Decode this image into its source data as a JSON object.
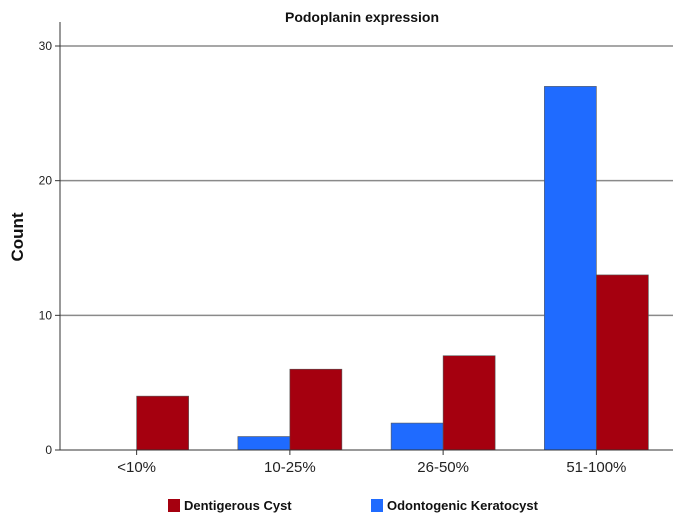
{
  "chart_data": {
    "type": "bar",
    "title": "Podoplanin expression",
    "xlabel": "",
    "ylabel": "Count",
    "categories": [
      "<10%",
      "10-25%",
      "26-50%",
      "51-100%"
    ],
    "series": [
      {
        "name": "Odontogenic Keratocyst",
        "color": "#1f6bff",
        "values": [
          0,
          1,
          2,
          27
        ]
      },
      {
        "name": "Dentigerous Cyst",
        "color": "#a5000f",
        "values": [
          4,
          6,
          7,
          13
        ]
      }
    ],
    "ylim": [
      0,
      30
    ],
    "yticks": [
      0,
      10,
      20,
      30
    ],
    "grid": true,
    "legend_position": "bottom",
    "legend_order": [
      "Dentigerous Cyst",
      "Odontogenic Keratocyst"
    ]
  }
}
